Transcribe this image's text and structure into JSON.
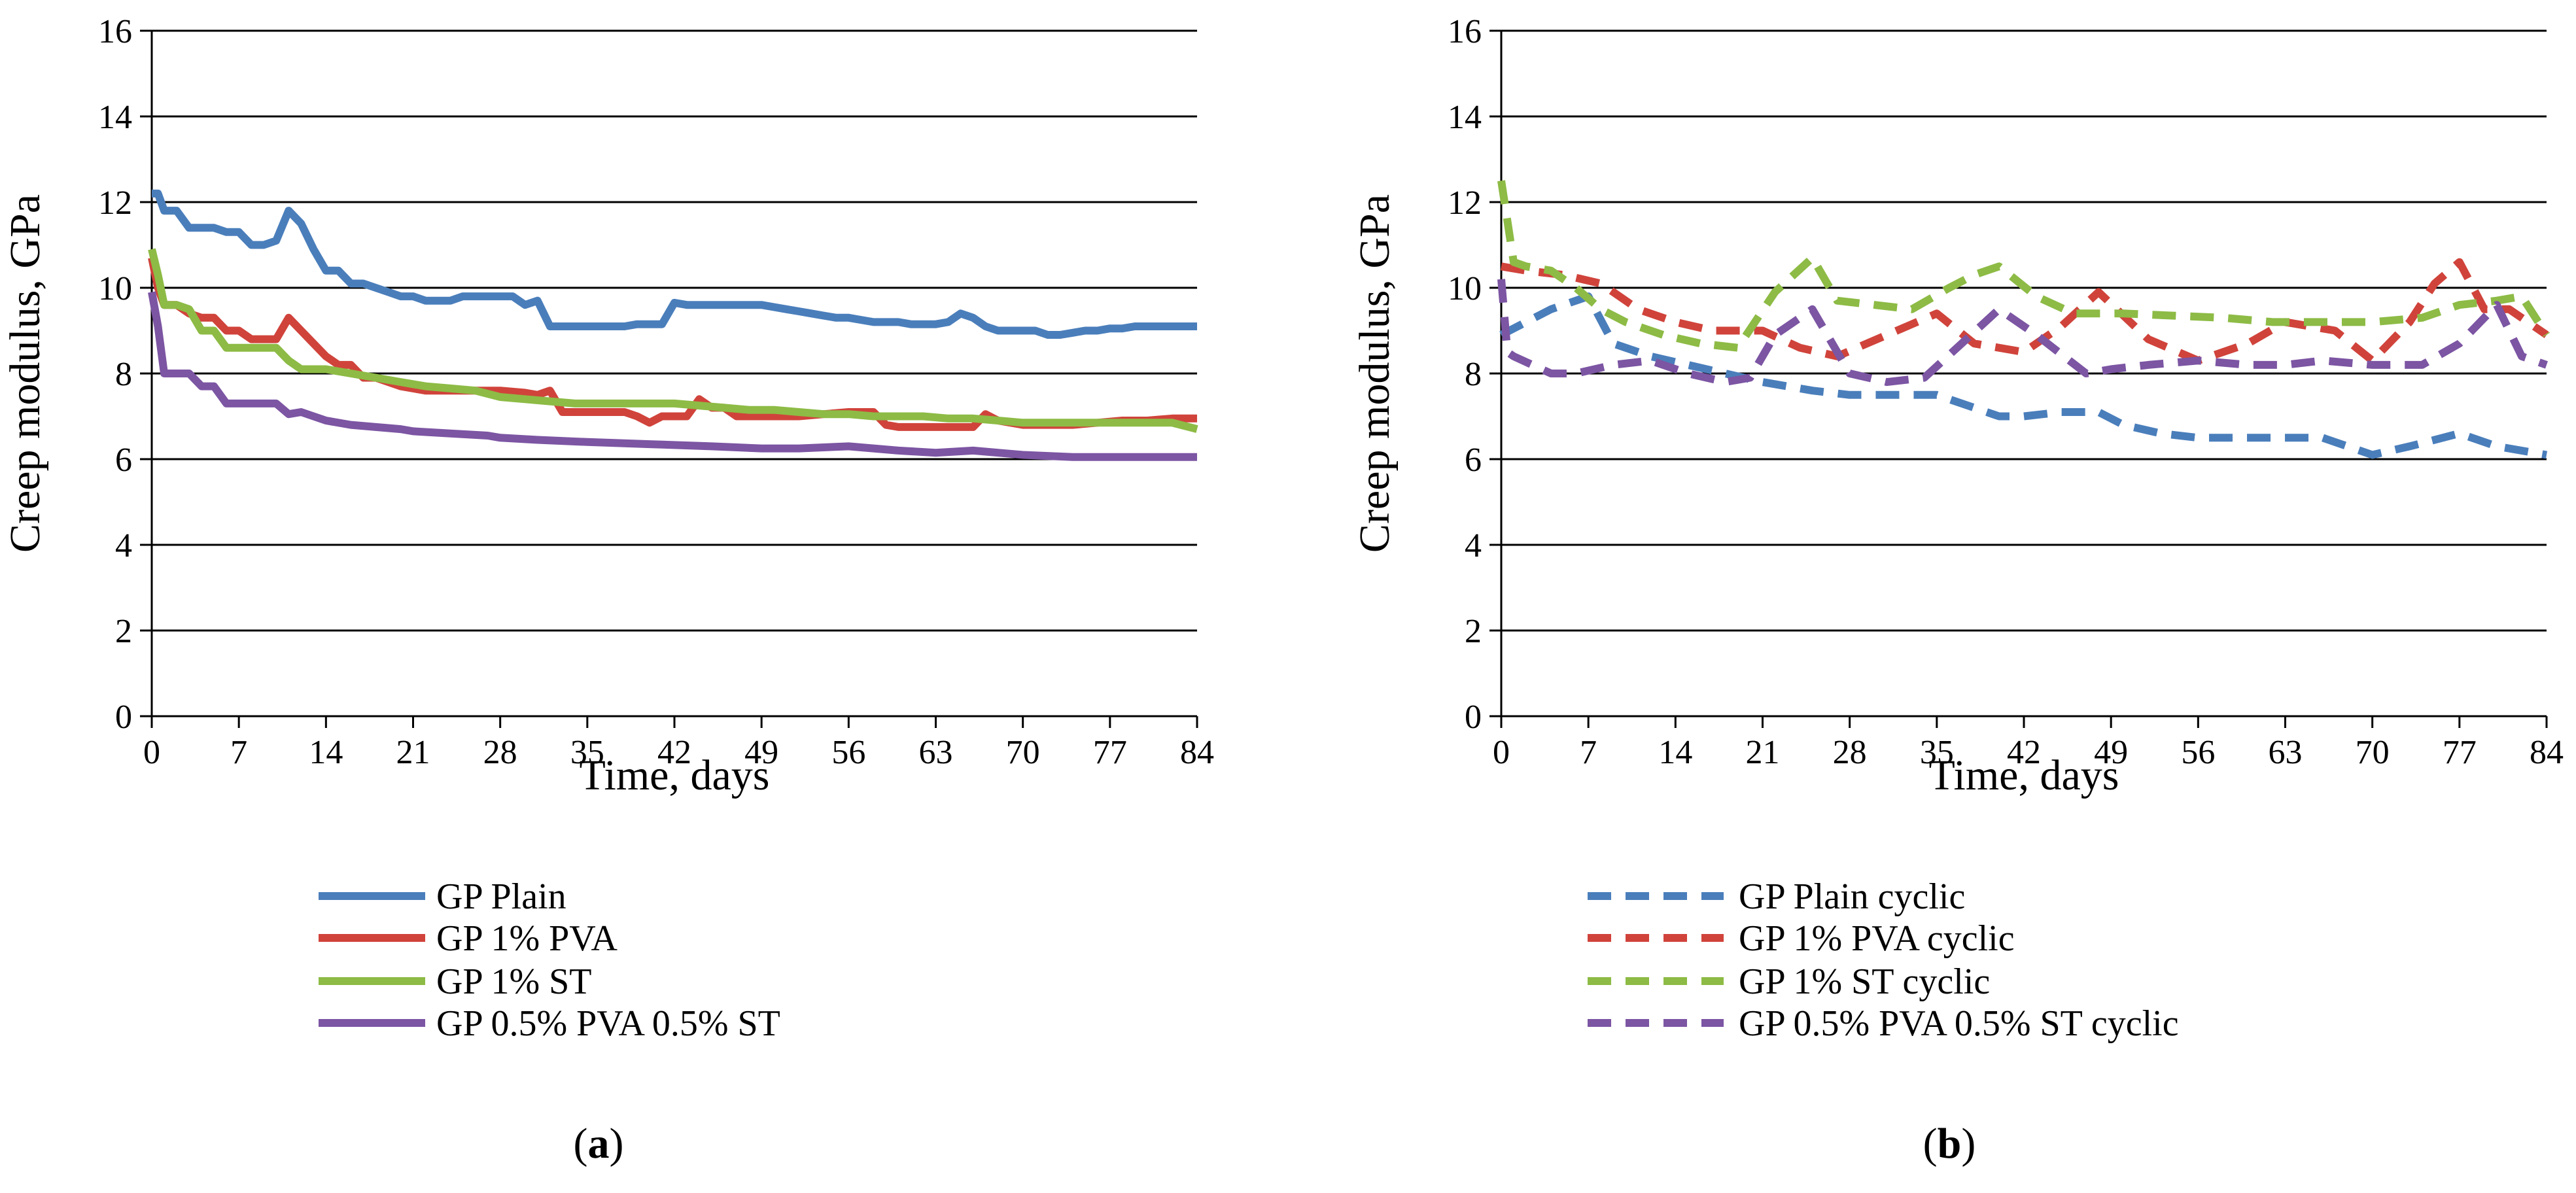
{
  "colors": {
    "blue": "#4a7ebb",
    "red": "#d0433b",
    "green": "#8dbb45",
    "purple": "#7c55a3",
    "grid": "#000000",
    "background": "#ffffff"
  },
  "chart_data": [
    {
      "type": "line",
      "panel_label": "a",
      "xlabel": "Time, days",
      "ylabel": "Creep modulus, GPa",
      "xlim": [
        0,
        84
      ],
      "ylim": [
        0,
        16
      ],
      "xticks": [
        0,
        7,
        14,
        21,
        28,
        35,
        42,
        49,
        56,
        63,
        70,
        77,
        84
      ],
      "yticks": [
        0,
        2,
        4,
        6,
        8,
        10,
        12,
        14,
        16
      ],
      "grid": true,
      "legend_position": "bottom",
      "series": [
        {
          "name": "GP Plain",
          "color": "blue",
          "dash": "solid",
          "x": [
            0,
            0.5,
            1,
            2,
            3,
            4,
            5,
            6,
            7,
            8,
            9,
            10,
            11,
            12,
            13,
            14,
            15,
            16,
            17,
            18,
            19,
            20,
            21,
            22,
            23,
            24,
            25,
            26,
            27,
            28,
            29,
            30,
            31,
            32,
            33,
            34,
            35,
            36,
            37,
            38,
            39,
            40,
            41,
            42,
            43,
            44,
            45,
            46,
            47,
            48,
            49,
            50,
            51,
            52,
            53,
            54,
            55,
            56,
            57,
            58,
            59,
            60,
            61,
            62,
            63,
            64,
            65,
            66,
            67,
            68,
            69,
            70,
            71,
            72,
            73,
            74,
            75,
            76,
            77,
            78,
            79,
            80,
            81,
            82,
            83,
            84
          ],
          "y": [
            12.2,
            12.2,
            11.8,
            11.8,
            11.4,
            11.4,
            11.4,
            11.3,
            11.3,
            11.0,
            11.0,
            11.1,
            11.8,
            11.5,
            10.9,
            10.4,
            10.4,
            10.1,
            10.1,
            10.0,
            9.9,
            9.8,
            9.8,
            9.7,
            9.7,
            9.7,
            9.8,
            9.8,
            9.8,
            9.8,
            9.8,
            9.6,
            9.7,
            9.1,
            9.1,
            9.1,
            9.1,
            9.1,
            9.1,
            9.1,
            9.15,
            9.15,
            9.15,
            9.65,
            9.6,
            9.6,
            9.6,
            9.6,
            9.6,
            9.6,
            9.6,
            9.55,
            9.5,
            9.45,
            9.4,
            9.35,
            9.3,
            9.3,
            9.25,
            9.2,
            9.2,
            9.2,
            9.15,
            9.15,
            9.15,
            9.2,
            9.4,
            9.3,
            9.1,
            9.0,
            9.0,
            9.0,
            9.0,
            8.9,
            8.9,
            8.95,
            9.0,
            9.0,
            9.05,
            9.05,
            9.1,
            9.1,
            9.1,
            9.1,
            9.1,
            9.1
          ]
        },
        {
          "name": "GP 1% PVA",
          "color": "red",
          "dash": "solid",
          "x": [
            0,
            0.5,
            1,
            2,
            3,
            4,
            5,
            6,
            7,
            8,
            9,
            10,
            11,
            12,
            13,
            14,
            15,
            16,
            17,
            18,
            20,
            22,
            24,
            26,
            28,
            30,
            31,
            32,
            33,
            34,
            35,
            36,
            37,
            38,
            39,
            40,
            41,
            42,
            43,
            44,
            45,
            46,
            47,
            48,
            49,
            50,
            52,
            54,
            56,
            58,
            59,
            60,
            62,
            64,
            66,
            67,
            68,
            70,
            72,
            74,
            76,
            78,
            80,
            82,
            84
          ],
          "y": [
            10.7,
            10.0,
            9.6,
            9.6,
            9.4,
            9.3,
            9.3,
            9.0,
            9.0,
            8.8,
            8.8,
            8.8,
            9.3,
            9.0,
            8.7,
            8.4,
            8.2,
            8.2,
            7.9,
            7.9,
            7.7,
            7.6,
            7.6,
            7.6,
            7.6,
            7.55,
            7.5,
            7.6,
            7.1,
            7.1,
            7.1,
            7.1,
            7.1,
            7.1,
            7.0,
            6.85,
            7.0,
            7.0,
            7.0,
            7.4,
            7.2,
            7.2,
            7.0,
            7.0,
            7.0,
            7.0,
            7.0,
            7.05,
            7.1,
            7.1,
            6.8,
            6.75,
            6.75,
            6.75,
            6.75,
            7.05,
            6.9,
            6.8,
            6.8,
            6.8,
            6.85,
            6.9,
            6.9,
            6.95,
            6.95
          ]
        },
        {
          "name": "GP 1% ST",
          "color": "green",
          "dash": "solid",
          "x": [
            0,
            0.5,
            1,
            2,
            3,
            4,
            5,
            6,
            7,
            8,
            9,
            10,
            11,
            12,
            14,
            16,
            18,
            20,
            22,
            24,
            26,
            28,
            30,
            32,
            34,
            36,
            38,
            40,
            42,
            44,
            46,
            48,
            50,
            52,
            54,
            56,
            58,
            60,
            62,
            64,
            66,
            68,
            70,
            72,
            74,
            76,
            78,
            80,
            82,
            84
          ],
          "y": [
            10.9,
            10.3,
            9.6,
            9.6,
            9.5,
            9.0,
            9.0,
            8.6,
            8.6,
            8.6,
            8.6,
            8.6,
            8.3,
            8.1,
            8.1,
            8.0,
            7.9,
            7.8,
            7.7,
            7.65,
            7.6,
            7.45,
            7.4,
            7.35,
            7.3,
            7.3,
            7.3,
            7.3,
            7.3,
            7.25,
            7.2,
            7.15,
            7.15,
            7.1,
            7.05,
            7.05,
            7.0,
            7.0,
            7.0,
            6.95,
            6.95,
            6.9,
            6.85,
            6.85,
            6.85,
            6.85,
            6.85,
            6.85,
            6.85,
            6.7
          ]
        },
        {
          "name": "GP 0.5% PVA 0.5% ST",
          "color": "purple",
          "dash": "solid",
          "x": [
            0,
            0.5,
            1,
            2,
            3,
            4,
            5,
            6,
            7,
            8,
            9,
            10,
            11,
            12,
            13,
            14,
            16,
            18,
            20,
            21,
            24,
            27,
            28,
            31,
            35,
            40,
            45,
            49,
            52,
            56,
            60,
            63,
            66,
            68,
            70,
            74,
            76,
            80,
            84
          ],
          "y": [
            9.9,
            9.1,
            8.0,
            8.0,
            8.0,
            7.7,
            7.7,
            7.3,
            7.3,
            7.3,
            7.3,
            7.3,
            7.05,
            7.1,
            7.0,
            6.9,
            6.8,
            6.75,
            6.7,
            6.65,
            6.6,
            6.55,
            6.5,
            6.45,
            6.4,
            6.35,
            6.3,
            6.25,
            6.25,
            6.3,
            6.2,
            6.15,
            6.2,
            6.15,
            6.1,
            6.05,
            6.05,
            6.05,
            6.05
          ]
        }
      ]
    },
    {
      "type": "line",
      "panel_label": "b",
      "xlabel": "Time, days",
      "ylabel": "Creep modulus, GPa",
      "xlim": [
        0,
        84
      ],
      "ylim": [
        0,
        16
      ],
      "xticks": [
        0,
        7,
        14,
        21,
        28,
        35,
        42,
        49,
        56,
        63,
        70,
        77,
        84
      ],
      "yticks": [
        0,
        2,
        4,
        6,
        8,
        10,
        12,
        14,
        16
      ],
      "grid": true,
      "legend_position": "bottom",
      "series": [
        {
          "name": "GP Plain cyclic",
          "color": "blue",
          "dash": "dashed",
          "x": [
            0,
            2,
            4,
            7,
            9,
            12,
            15,
            18,
            21,
            25,
            28,
            30,
            33,
            35,
            38,
            40,
            42,
            45,
            48,
            50,
            53,
            56,
            59,
            63,
            66,
            70,
            73,
            77,
            80,
            84
          ],
          "y": [
            8.9,
            9.2,
            9.5,
            9.8,
            8.7,
            8.4,
            8.2,
            8.0,
            7.8,
            7.6,
            7.5,
            7.5,
            7.5,
            7.5,
            7.2,
            7.0,
            7.0,
            7.1,
            7.1,
            6.8,
            6.6,
            6.5,
            6.5,
            6.5,
            6.5,
            6.1,
            6.3,
            6.6,
            6.3,
            6.1
          ]
        },
        {
          "name": "GP 1% PVA cyclic",
          "color": "red",
          "dash": "dashed",
          "x": [
            0,
            2,
            5,
            8,
            11,
            14,
            17,
            21,
            24,
            27,
            31,
            35,
            38,
            42,
            45,
            48,
            52,
            56,
            60,
            63,
            67,
            70,
            73,
            75,
            77,
            79,
            81,
            84
          ],
          "y": [
            10.5,
            10.4,
            10.3,
            10.1,
            9.5,
            9.2,
            9.0,
            9.0,
            8.6,
            8.4,
            8.9,
            9.4,
            8.7,
            8.5,
            9.1,
            9.9,
            8.8,
            8.3,
            8.7,
            9.2,
            9.0,
            8.3,
            9.2,
            10.1,
            10.6,
            9.5,
            9.5,
            8.9
          ]
        },
        {
          "name": "GP 1% ST cyclic",
          "color": "green",
          "dash": "dashed",
          "x": [
            0,
            1,
            2,
            4,
            6,
            8,
            10,
            13,
            16,
            19,
            22,
            25,
            27,
            30,
            33,
            36,
            38,
            40,
            43,
            46,
            50,
            54,
            58,
            62,
            66,
            70,
            74,
            77,
            80,
            82,
            84
          ],
          "y": [
            12.5,
            10.6,
            10.5,
            10.4,
            10.0,
            9.5,
            9.2,
            8.9,
            8.7,
            8.6,
            9.9,
            10.7,
            9.7,
            9.6,
            9.5,
            10.0,
            10.3,
            10.5,
            9.8,
            9.4,
            9.4,
            9.35,
            9.3,
            9.2,
            9.2,
            9.2,
            9.3,
            9.6,
            9.7,
            9.8,
            8.9
          ]
        },
        {
          "name": "GP 0.5% PVA 0.5% ST cyclic",
          "color": "purple",
          "dash": "dashed",
          "x": [
            0,
            0.5,
            1,
            4,
            6,
            9,
            12,
            15,
            18,
            20,
            22,
            25,
            28,
            31,
            34,
            37,
            40,
            43,
            47,
            49,
            52,
            56,
            60,
            63,
            66,
            70,
            74,
            77,
            80,
            82,
            84
          ],
          "y": [
            10.2,
            8.5,
            8.4,
            8.0,
            8.0,
            8.2,
            8.3,
            8.0,
            7.8,
            7.9,
            8.9,
            9.5,
            8.0,
            7.8,
            7.9,
            8.7,
            9.5,
            8.9,
            8.0,
            8.1,
            8.2,
            8.3,
            8.2,
            8.2,
            8.3,
            8.2,
            8.2,
            8.7,
            9.6,
            8.4,
            8.2
          ]
        }
      ]
    }
  ]
}
